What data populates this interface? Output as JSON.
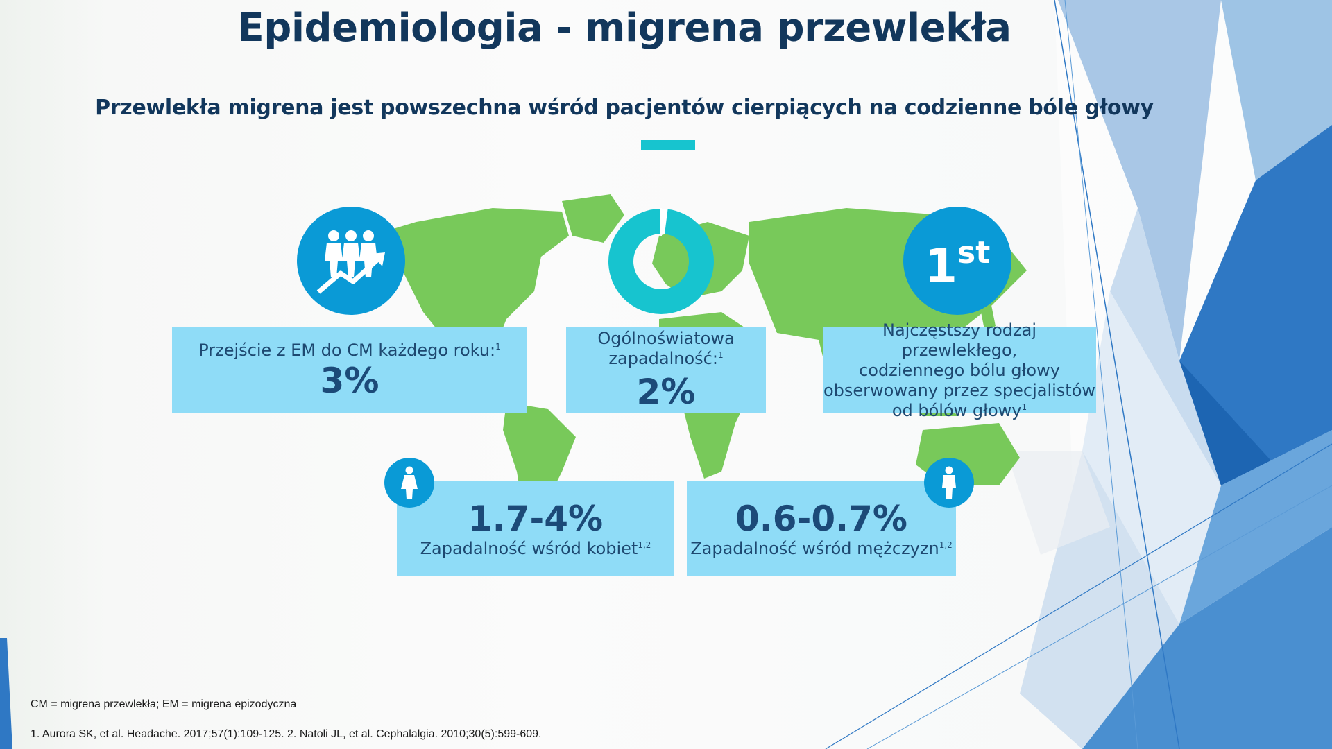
{
  "slide": {
    "title": "Epidemiologia - migrena przewlekła",
    "subtitle": "Przewlekła migrena jest powszechna wśród pacjentów cierpiących na codzienne bóle głowy"
  },
  "stats": {
    "transition": {
      "label": "Przejście z EM do CM każdego roku:",
      "ref": "1",
      "value": "3%",
      "icon": "people-trend-up-icon"
    },
    "worldwide": {
      "label_line1": "Ogólnoświatowa",
      "label_line2": "zapadalność:",
      "ref": "1",
      "value": "2%",
      "icon": "donut-chart-icon",
      "donut_fraction": 0.02
    },
    "most_common": {
      "badge_number": "1",
      "badge_suffix": "st",
      "line1": "Najczęstszy rodzaj przewlekłego,",
      "line2": "codziennego bólu głowy",
      "line3": "obserwowany przez specjalistów",
      "line4": "od bólów głowy",
      "ref": "1"
    },
    "women": {
      "value": "1.7-4%",
      "label": "Zapadalność wśród kobiet",
      "ref": "1,2",
      "icon": "woman-icon"
    },
    "men": {
      "value": "0.6-0.7%",
      "label": "Zapadalność wśród mężczyzn",
      "ref": "1,2",
      "icon": "man-icon"
    }
  },
  "footer": {
    "abbreviations": "CM = migrena przewlekła; EM = migrena epizodyczna",
    "references": "1. Aurora SK, et al. Headache. 2017;57(1):109-125. 2. Natoli JL, et al. Cephalalgia. 2010;30(5):599-609."
  },
  "colors": {
    "title": "#12375c",
    "accent": "#17c4cf",
    "icon_circle": "#0a9ad6",
    "box": "#8fdcf7",
    "map": "#78c95a"
  }
}
